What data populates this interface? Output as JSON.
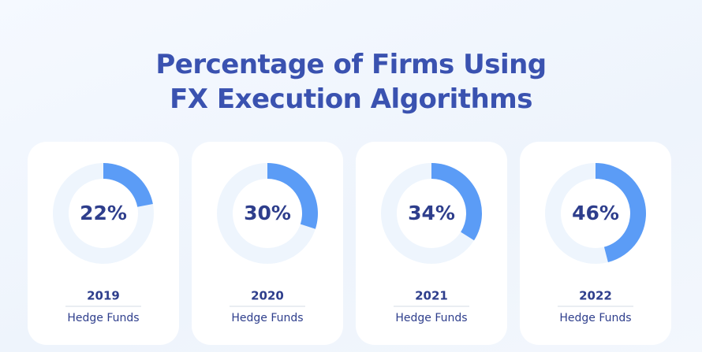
{
  "chart_data": {
    "type": "donut",
    "title": "Percentage of Firms Using FX Execution Algorithms",
    "categories": [
      "2019",
      "2020",
      "2021",
      "2022"
    ],
    "series": [
      {
        "name": "Hedge Funds",
        "color": "#5b9cf6",
        "values": [
          22,
          30,
          34,
          46
        ],
        "value_labels": [
          "22%",
          "30%",
          "34%",
          "46%"
        ]
      }
    ]
  }
}
